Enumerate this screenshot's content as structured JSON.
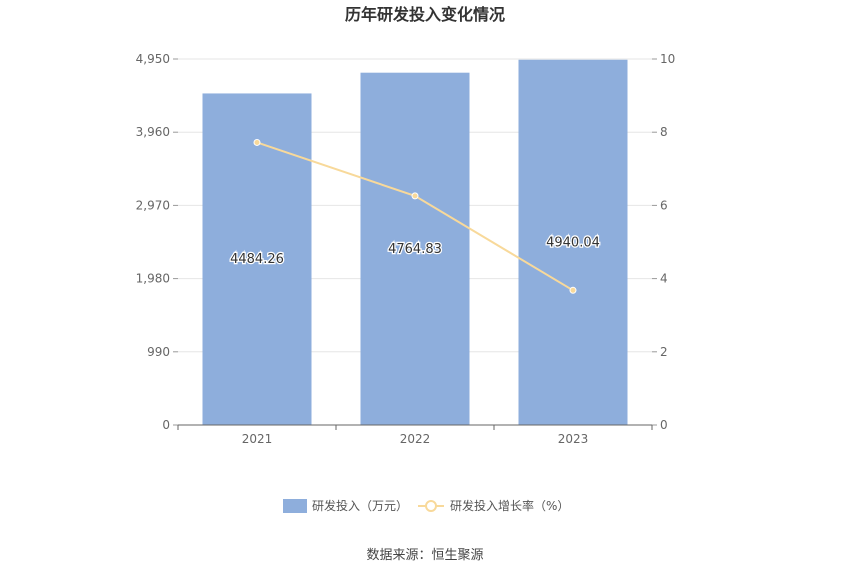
{
  "chart_data": {
    "type": "bar",
    "title": "历年研发投入变化情况",
    "categories": [
      "2021",
      "2022",
      "2023"
    ],
    "series": [
      {
        "name": "研发投入（万元）",
        "type": "bar",
        "axis": "left",
        "values": [
          4484.26,
          4764.83,
          4940.04
        ],
        "labels": [
          "4484.26",
          "4764.83",
          "4940.04"
        ],
        "color": "#8eaedc"
      },
      {
        "name": "研发投入增长率（%）",
        "type": "line",
        "axis": "right",
        "values": [
          7.72,
          6.26,
          3.68
        ],
        "color": "#f8d99a"
      }
    ],
    "y_left": {
      "min": 0,
      "max": 4950,
      "ticks": [
        0,
        990,
        1980,
        2970,
        3960,
        4950
      ],
      "tick_labels": [
        "0",
        "990",
        "1,980",
        "2,970",
        "3,960",
        "4,950"
      ]
    },
    "y_right": {
      "min": 0,
      "max": 10,
      "ticks": [
        0,
        2,
        4,
        6,
        8,
        10
      ],
      "tick_labels": [
        "0",
        "2",
        "4",
        "6",
        "8",
        "10"
      ]
    },
    "grid": true,
    "legend": "bottom-center"
  },
  "source": "数据来源：恒生聚源"
}
